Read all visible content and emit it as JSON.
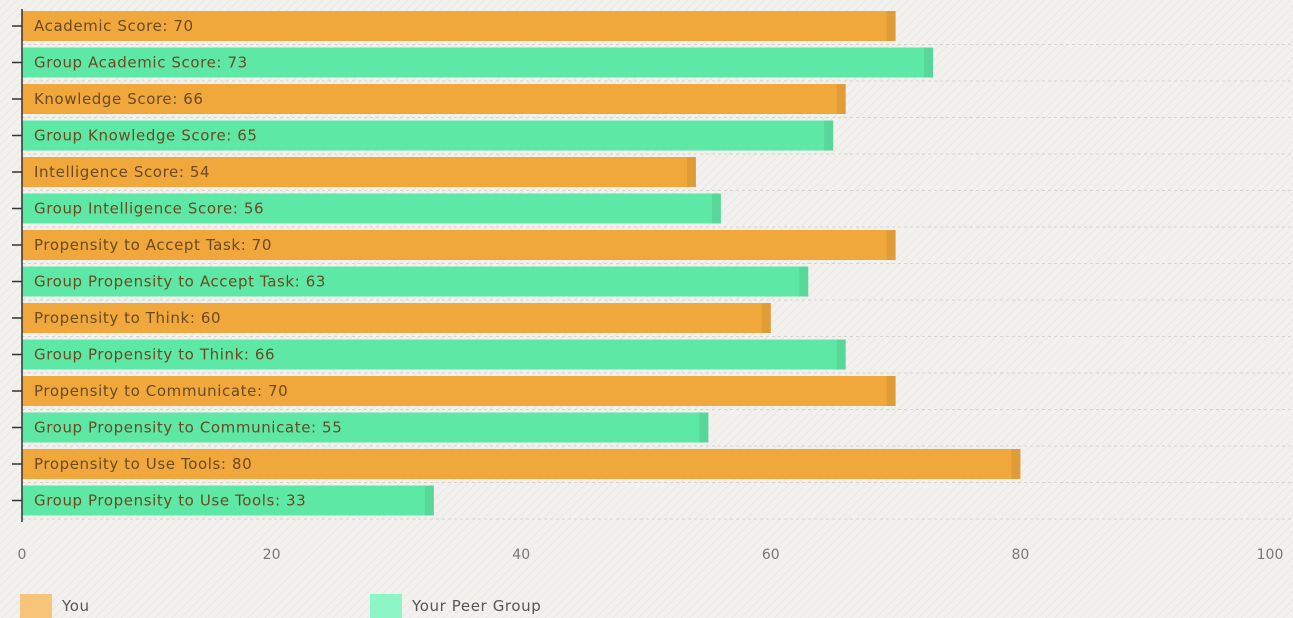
{
  "chart_data": {
    "type": "bar",
    "orientation": "horizontal",
    "categories": [
      "Academic Score: 70",
      "Group Academic Score: 73",
      "Knowledge Score: 66",
      "Group Knowledge Score: 65",
      "Intelligence Score: 54",
      "Group Intelligence Score: 56",
      "Propensity to Accept Task: 70",
      "Group Propensity to Accept Task: 63",
      "Propensity to Think: 60",
      "Group Propensity to Think: 66",
      "Propensity to Communicate: 70",
      "Group Propensity to Communicate: 55",
      "Propensity to Use Tools: 80",
      "Group Propensity to Use Tools: 33"
    ],
    "values": [
      70,
      73,
      66,
      65,
      54,
      56,
      70,
      63,
      60,
      66,
      70,
      55,
      80,
      33
    ],
    "series_index": [
      0,
      1,
      0,
      1,
      0,
      1,
      0,
      1,
      0,
      1,
      0,
      1,
      0,
      1
    ],
    "series": [
      {
        "name": "You",
        "color": "#f0a83c"
      },
      {
        "name": "Your Peer Group",
        "color": "#5ee8a6"
      }
    ],
    "xlim": [
      0,
      100
    ],
    "xticks": [
      "0",
      "20",
      "40",
      "60",
      "80",
      "100"
    ],
    "grid": true,
    "legend_position": "bottom-left"
  },
  "legend": {
    "you_label": "You",
    "peer_label": "Your Peer Group",
    "you_color": "#f7c57a",
    "peer_color": "#8ef5c6"
  }
}
